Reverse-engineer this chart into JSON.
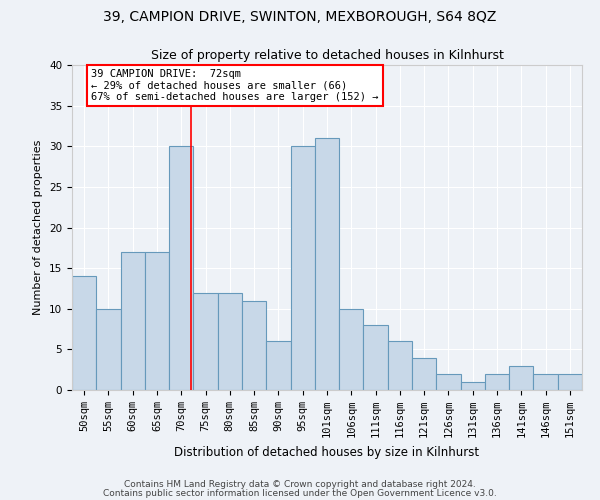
{
  "title1": "39, CAMPION DRIVE, SWINTON, MEXBOROUGH, S64 8QZ",
  "title2": "Size of property relative to detached houses in Kilnhurst",
  "xlabel": "Distribution of detached houses by size in Kilnhurst",
  "ylabel": "Number of detached properties",
  "categories": [
    "50sqm",
    "55sqm",
    "60sqm",
    "65sqm",
    "70sqm",
    "75sqm",
    "80sqm",
    "85sqm",
    "90sqm",
    "95sqm",
    "101sqm",
    "106sqm",
    "111sqm",
    "116sqm",
    "121sqm",
    "126sqm",
    "131sqm",
    "136sqm",
    "141sqm",
    "146sqm",
    "151sqm"
  ],
  "values": [
    14,
    10,
    17,
    17,
    30,
    12,
    12,
    11,
    6,
    30,
    31,
    10,
    8,
    6,
    4,
    2,
    1,
    2,
    3,
    2,
    2
  ],
  "bar_color": "#c8d8e8",
  "bar_edge_color": "#6699bb",
  "ylim": [
    0,
    40
  ],
  "yticks": [
    0,
    5,
    10,
    15,
    20,
    25,
    30,
    35,
    40
  ],
  "red_line_x": 4.4,
  "annotation_line1": "39 CAMPION DRIVE:  72sqm",
  "annotation_line2": "← 29% of detached houses are smaller (66)",
  "annotation_line3": "67% of semi-detached houses are larger (152) →",
  "footer1": "Contains HM Land Registry data © Crown copyright and database right 2024.",
  "footer2": "Contains public sector information licensed under the Open Government Licence v3.0.",
  "background_color": "#eef2f7",
  "grid_color": "#ffffff",
  "title1_fontsize": 10,
  "title2_fontsize": 9,
  "tick_fontsize": 7.5,
  "ylabel_fontsize": 8,
  "xlabel_fontsize": 8.5,
  "footer_fontsize": 6.5,
  "annot_fontsize": 7.5
}
